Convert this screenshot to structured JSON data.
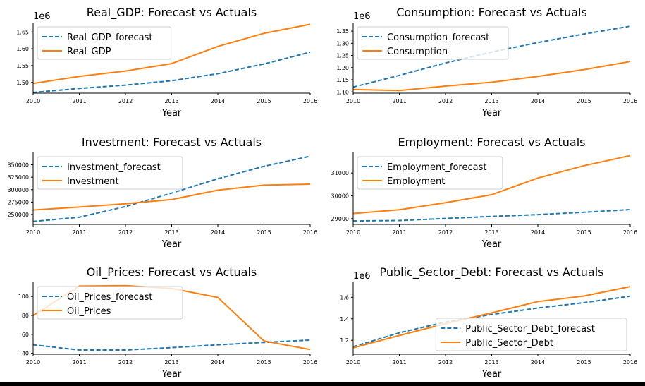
{
  "colors": {
    "forecast": "#1f77b4",
    "actual": "#ff7f0e",
    "axis": "#000000"
  },
  "chart_data": [
    {
      "type": "line",
      "title": "Real_GDP: Forecast vs Actuals",
      "xlabel": "Year",
      "offset_label": "1e6",
      "x": [
        "2010",
        "2011",
        "2012",
        "2013",
        "2014",
        "2015",
        "2016"
      ],
      "ylim": [
        1.468,
        1.678
      ],
      "yticks": [
        1.5,
        1.55,
        1.6,
        1.65
      ],
      "yticklabels": [
        "1.50",
        "1.55",
        "1.60",
        "1.65"
      ],
      "legend_loc": "upper-left",
      "series": [
        {
          "name": "Real_GDP_forecast",
          "style": "dashed",
          "color": "#1f77b4",
          "values": [
            1.47,
            1.482,
            1.492,
            1.505,
            1.526,
            1.555,
            1.59
          ]
        },
        {
          "name": "Real_GDP",
          "style": "solid",
          "color": "#ff7f0e",
          "values": [
            1.497,
            1.518,
            1.534,
            1.556,
            1.607,
            1.646,
            1.673
          ]
        }
      ]
    },
    {
      "type": "line",
      "title": "Consumption: Forecast vs Actuals",
      "xlabel": "Year",
      "offset_label": "1e6",
      "x": [
        "2010",
        "2011",
        "2012",
        "2013",
        "2014",
        "2015",
        "2016"
      ],
      "ylim": [
        1.095,
        1.385
      ],
      "yticks": [
        1.1,
        1.15,
        1.2,
        1.25,
        1.3,
        1.35
      ],
      "yticklabels": [
        "1.10",
        "1.15",
        "1.20",
        "1.25",
        "1.30",
        "1.35"
      ],
      "legend_loc": "upper-left",
      "series": [
        {
          "name": "Consumption_forecast",
          "style": "dashed",
          "color": "#1f77b4",
          "values": [
            1.12,
            1.168,
            1.219,
            1.264,
            1.303,
            1.338,
            1.37
          ]
        },
        {
          "name": "Consumption",
          "style": "solid",
          "color": "#ff7f0e",
          "values": [
            1.11,
            1.106,
            1.124,
            1.14,
            1.164,
            1.192,
            1.225
          ]
        }
      ]
    },
    {
      "type": "line",
      "title": "Investment: Forecast vs Actuals",
      "xlabel": "Year",
      "offset_label": "",
      "x": [
        "2010",
        "2011",
        "2012",
        "2013",
        "2014",
        "2015",
        "2016"
      ],
      "ylim": [
        230000,
        375000
      ],
      "yticks": [
        250000,
        275000,
        300000,
        325000,
        350000
      ],
      "yticklabels": [
        "250000",
        "275000",
        "300000",
        "325000",
        "350000"
      ],
      "legend_loc": "upper-left",
      "series": [
        {
          "name": "Investment_forecast",
          "style": "dashed",
          "color": "#1f77b4",
          "values": [
            236000,
            244500,
            266000,
            293000,
            322000,
            347000,
            367500
          ]
        },
        {
          "name": "Investment",
          "style": "solid",
          "color": "#ff7f0e",
          "values": [
            259000,
            265000,
            271500,
            280000,
            299000,
            309000,
            311000
          ]
        }
      ]
    },
    {
      "type": "line",
      "title": "Employment: Forecast vs Actuals",
      "xlabel": "Year",
      "offset_label": "",
      "x": [
        "2010",
        "2011",
        "2012",
        "2013",
        "2014",
        "2015",
        "2016"
      ],
      "ylim": [
        28750,
        31900
      ],
      "yticks": [
        29000,
        30000,
        31000
      ],
      "yticklabels": [
        "29000",
        "30000",
        "31000"
      ],
      "legend_loc": "upper-left",
      "series": [
        {
          "name": "Employment_forecast",
          "style": "dashed",
          "color": "#1f77b4",
          "values": [
            28900,
            28920,
            29010,
            29100,
            29180,
            29280,
            29400
          ]
        },
        {
          "name": "Employment",
          "style": "solid",
          "color": "#ff7f0e",
          "values": [
            29230,
            29390,
            29700,
            30050,
            30780,
            31320,
            31760
          ]
        }
      ]
    },
    {
      "type": "line",
      "title": "Oil_Prices: Forecast vs Actuals",
      "xlabel": "Year",
      "offset_label": "",
      "x": [
        "2010",
        "2011",
        "2012",
        "2013",
        "2014",
        "2015",
        "2016"
      ],
      "ylim": [
        39,
        115
      ],
      "yticks": [
        40,
        60,
        80,
        100
      ],
      "yticklabels": [
        "40",
        "60",
        "80",
        "100"
      ],
      "legend_loc": "upper-left",
      "series": [
        {
          "name": "Oil_Prices_forecast",
          "style": "dashed",
          "color": "#1f77b4",
          "values": [
            49,
            43.5,
            43.5,
            46,
            49,
            51.5,
            54
          ]
        },
        {
          "name": "Oil_Prices",
          "style": "solid",
          "color": "#ff7f0e",
          "values": [
            80,
            111,
            111.5,
            108.5,
            99,
            53,
            44
          ]
        }
      ]
    },
    {
      "type": "line",
      "title": "Public_Sector_Debt: Forecast vs Actuals",
      "xlabel": "Year",
      "offset_label": "1e6",
      "x": [
        "2010",
        "2011",
        "2012",
        "2013",
        "2014",
        "2015",
        "2016"
      ],
      "ylim": [
        1.07,
        1.74
      ],
      "yticks": [
        1.2,
        1.4,
        1.6
      ],
      "yticklabels": [
        "1.2",
        "1.4",
        "1.6"
      ],
      "legend_loc": "lower-right",
      "series": [
        {
          "name": "Public_Sector_Debt_forecast",
          "style": "dashed",
          "color": "#1f77b4",
          "values": [
            1.14,
            1.27,
            1.37,
            1.44,
            1.5,
            1.55,
            1.61
          ]
        },
        {
          "name": "Public_Sector_Debt",
          "style": "solid",
          "color": "#ff7f0e",
          "values": [
            1.13,
            1.245,
            1.355,
            1.455,
            1.56,
            1.612,
            1.7
          ]
        }
      ]
    }
  ]
}
